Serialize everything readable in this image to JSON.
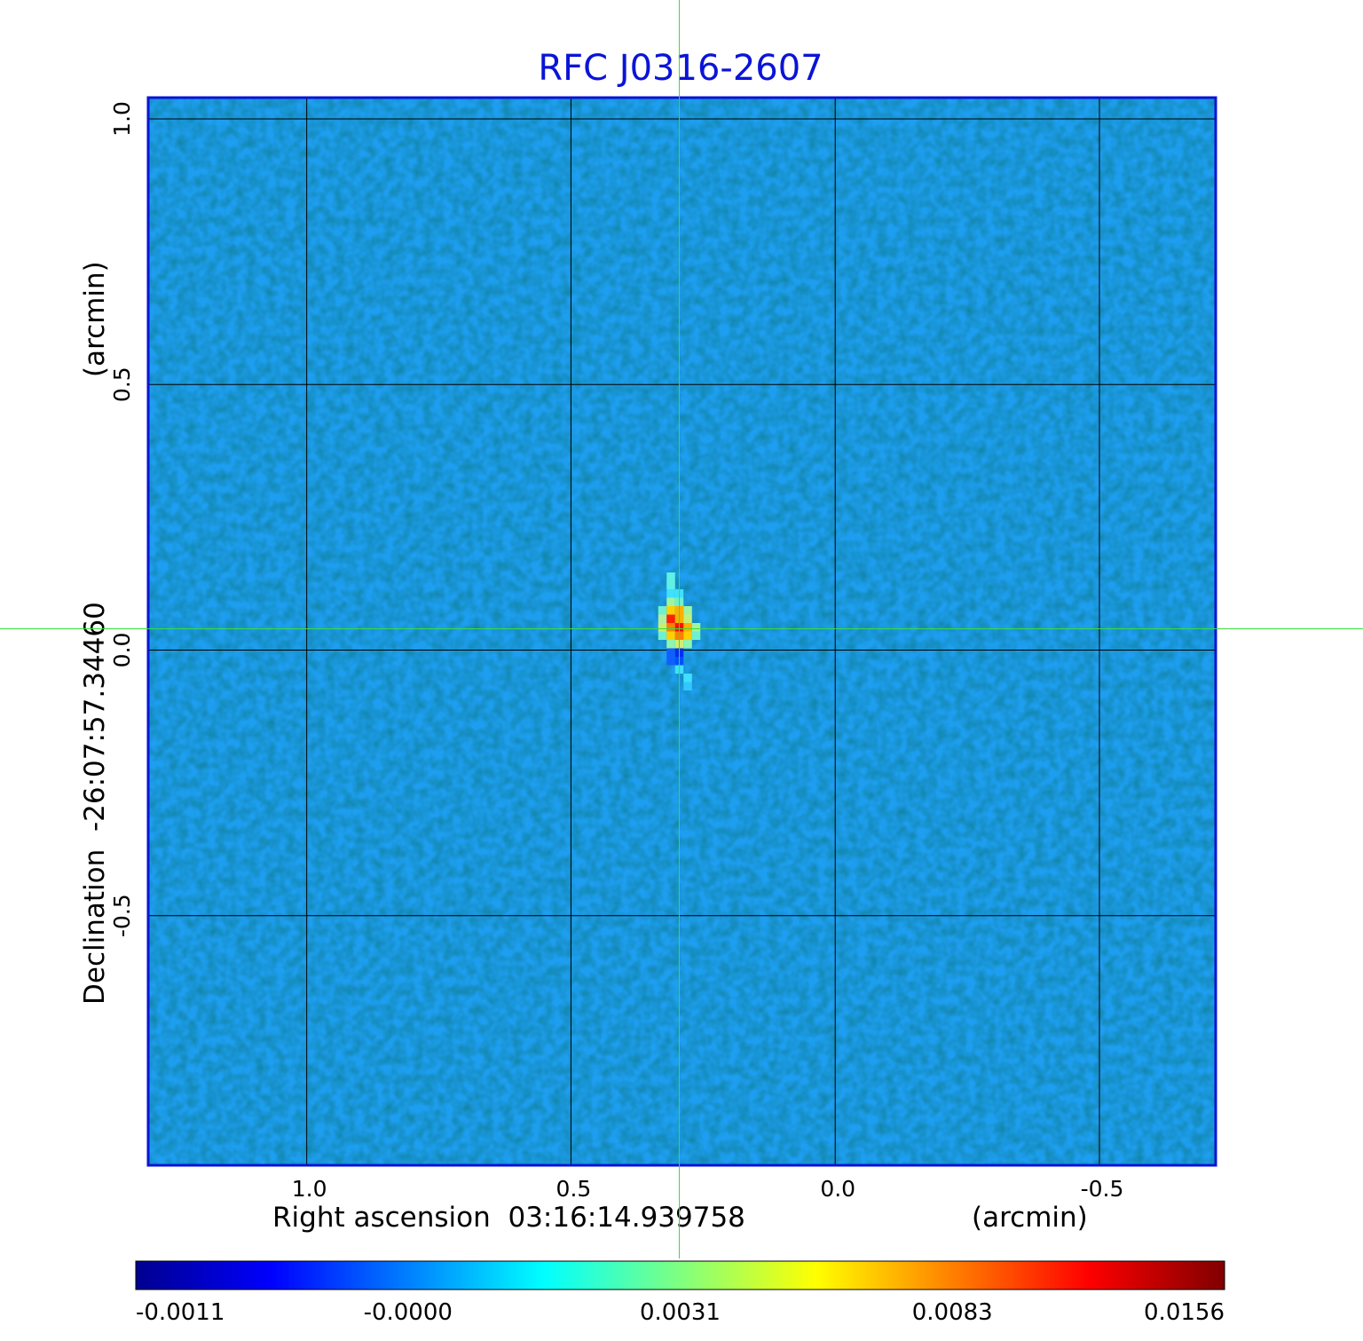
{
  "chart_data": {
    "type": "heatmap",
    "title": "RFC J0316-2607",
    "xlabel": "Right ascension  03:16:14.939758",
    "xunit": "(arcmin)",
    "ylabel": "Declination  -26:07:57.34460",
    "yunit": "(arcmin)",
    "xlim": [
      1.3,
      -0.72
    ],
    "ylim": [
      -0.97,
      1.04
    ],
    "x_ticks": [
      1.0,
      0.5,
      0.0,
      -0.5
    ],
    "x_tick_labels": [
      "1.0",
      "0.5",
      "0.0",
      "-0.5"
    ],
    "y_ticks": [
      1.0,
      0.5,
      0.0,
      -0.5
    ],
    "y_tick_labels": [
      "1.0",
      "0.5",
      "0.0",
      "-0.5"
    ],
    "grid": true,
    "crosshair": {
      "x": 0.295,
      "y": 0.04
    },
    "source_peak": {
      "x": 0.295,
      "y": 0.04,
      "value": 0.0156
    },
    "colorbar": {
      "ticks": [
        -0.0011,
        -0.0,
        0.0031,
        0.0083,
        0.0156
      ],
      "tick_labels": [
        "-0.0011",
        "-0.0000",
        "0.0031",
        "0.0083",
        "0.0156"
      ],
      "colormap": "jet"
    },
    "colors": {
      "title": "#0a14d6",
      "frame": "#0a14d6",
      "background": "#1e9ef0",
      "grid": "#000000",
      "crosshair": "#3adc3a"
    }
  }
}
